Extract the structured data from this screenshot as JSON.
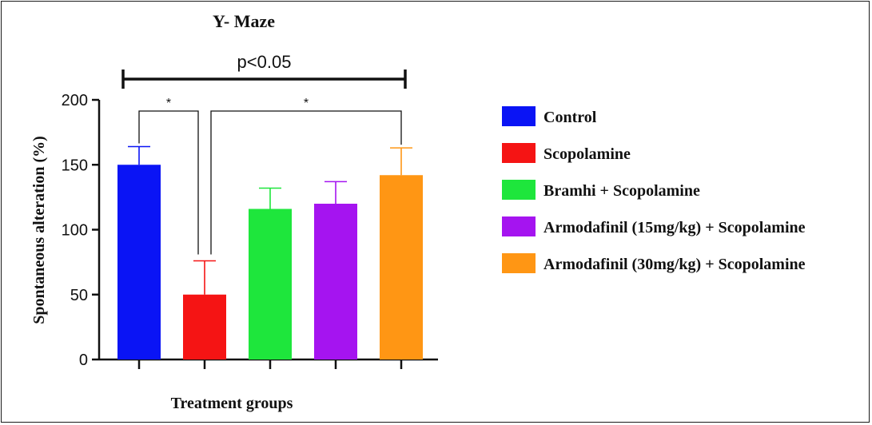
{
  "chart_data": {
    "type": "bar",
    "title": "Y- Maze",
    "xlabel": "Treatment groups",
    "ylabel": "Spontaneous alteration (%)",
    "ylim": [
      0,
      200
    ],
    "yticks": [
      "0",
      "50",
      "100",
      "150",
      "200"
    ],
    "categories": [
      "Control",
      "Scopolamine",
      "Bramhi + Scopolamine",
      "Armodafinil (15mg/kg) + Scopolamine",
      "Armodafinil (30mg/kg) + Scopolamine"
    ],
    "values": [
      150,
      50,
      116,
      120,
      142
    ],
    "errors": [
      14,
      26,
      16,
      17,
      21
    ],
    "colors": [
      "#0a14f5",
      "#f51414",
      "#1ee63c",
      "#a514f0",
      "#ff9614"
    ],
    "legend": {
      "position": "right",
      "items": [
        "Control",
        "Scopolamine",
        "Bramhi + Scopolamine",
        "Armodafinil (15mg/kg) + Scopolamine",
        "Armodafinil (30mg/kg) + Scopolamine"
      ]
    },
    "annotations": {
      "overall": "p<0.05",
      "star_1": "*",
      "star_2": "*"
    },
    "grid": false
  }
}
